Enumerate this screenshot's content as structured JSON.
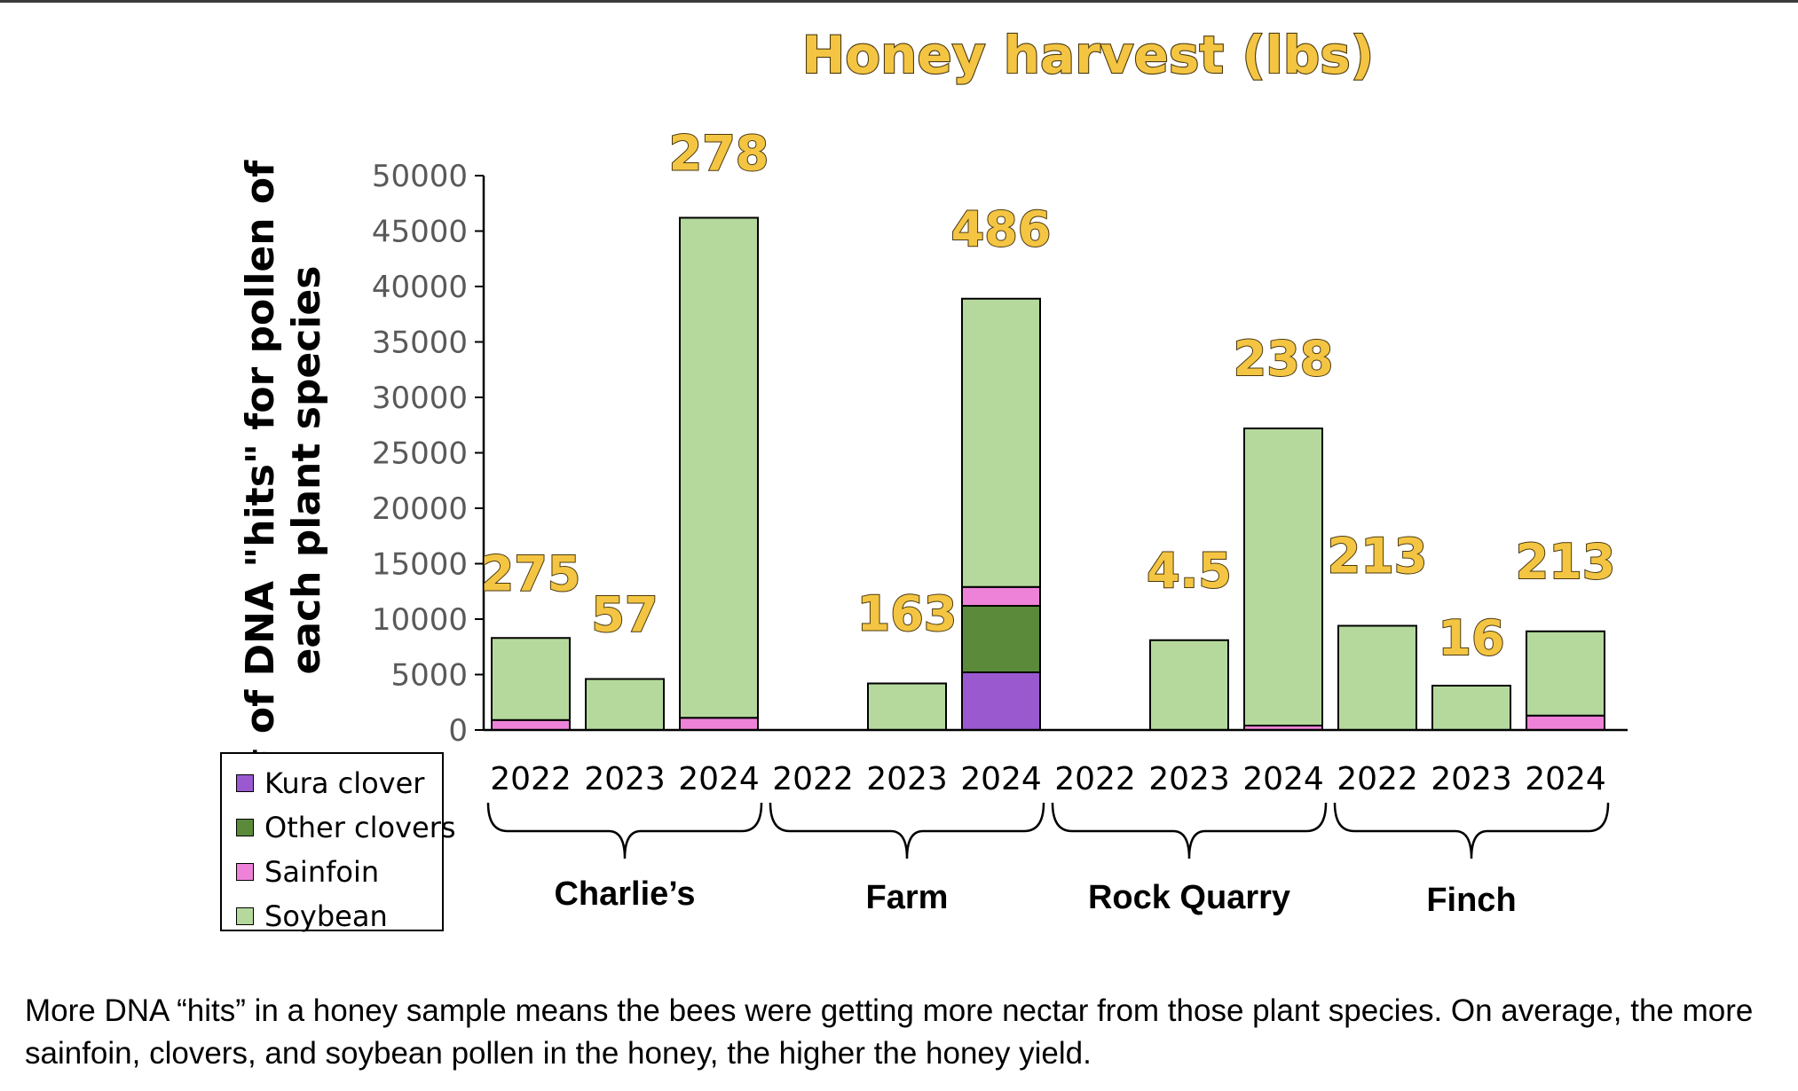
{
  "chart_data": {
    "type": "bar",
    "stacked": true,
    "title": "Honey harvest (lbs)",
    "ylabel_line1": "# of DNA \"hits\" for pollen of",
    "ylabel_line2": "each  plant species",
    "ylim": [
      0,
      50000
    ],
    "yticks": [
      0,
      5000,
      10000,
      15000,
      20000,
      25000,
      30000,
      35000,
      40000,
      45000,
      50000
    ],
    "grid": false,
    "legend_position": "bottom-left",
    "groups": [
      {
        "name": "Charlie’s",
        "categories": [
          "2022",
          "2023",
          "2024"
        ]
      },
      {
        "name": "Farm",
        "categories": [
          "2022",
          "2023",
          "2024"
        ]
      },
      {
        "name": "Rock Quarry",
        "categories": [
          "2022",
          "2023",
          "2024"
        ]
      },
      {
        "name": "Finch",
        "categories": [
          "2022",
          "2023",
          "2024"
        ]
      }
    ],
    "series": [
      {
        "name": "Kura clover",
        "color": "#9b59d0",
        "values": [
          0,
          0,
          0,
          0,
          0,
          5200,
          0,
          0,
          0,
          0,
          0,
          0
        ]
      },
      {
        "name": "Other clovers",
        "color": "#5a8a3a",
        "values": [
          0,
          0,
          0,
          0,
          0,
          6000,
          0,
          0,
          0,
          0,
          0,
          0
        ]
      },
      {
        "name": "Sainfoin",
        "color": "#ee82d8",
        "values": [
          900,
          0,
          1100,
          0,
          0,
          1700,
          0,
          0,
          400,
          0,
          0,
          1300
        ]
      },
      {
        "name": "Soybean",
        "color": "#b5d99c",
        "values": [
          7400,
          4600,
          45100,
          0,
          4200,
          26000,
          0,
          8100,
          26800,
          9400,
          4000,
          7600
        ]
      }
    ],
    "bar_labels": [
      "275",
      "57",
      "278",
      "",
      "163",
      "486",
      "",
      "4.5",
      "238",
      "213",
      "16",
      "213"
    ]
  },
  "caption": "More DNA “hits” in a honey sample means the bees were getting more nectar from those plant species.  On average, the more sainfoin, clovers, and soybean pollen in the honey, the higher the honey yield."
}
